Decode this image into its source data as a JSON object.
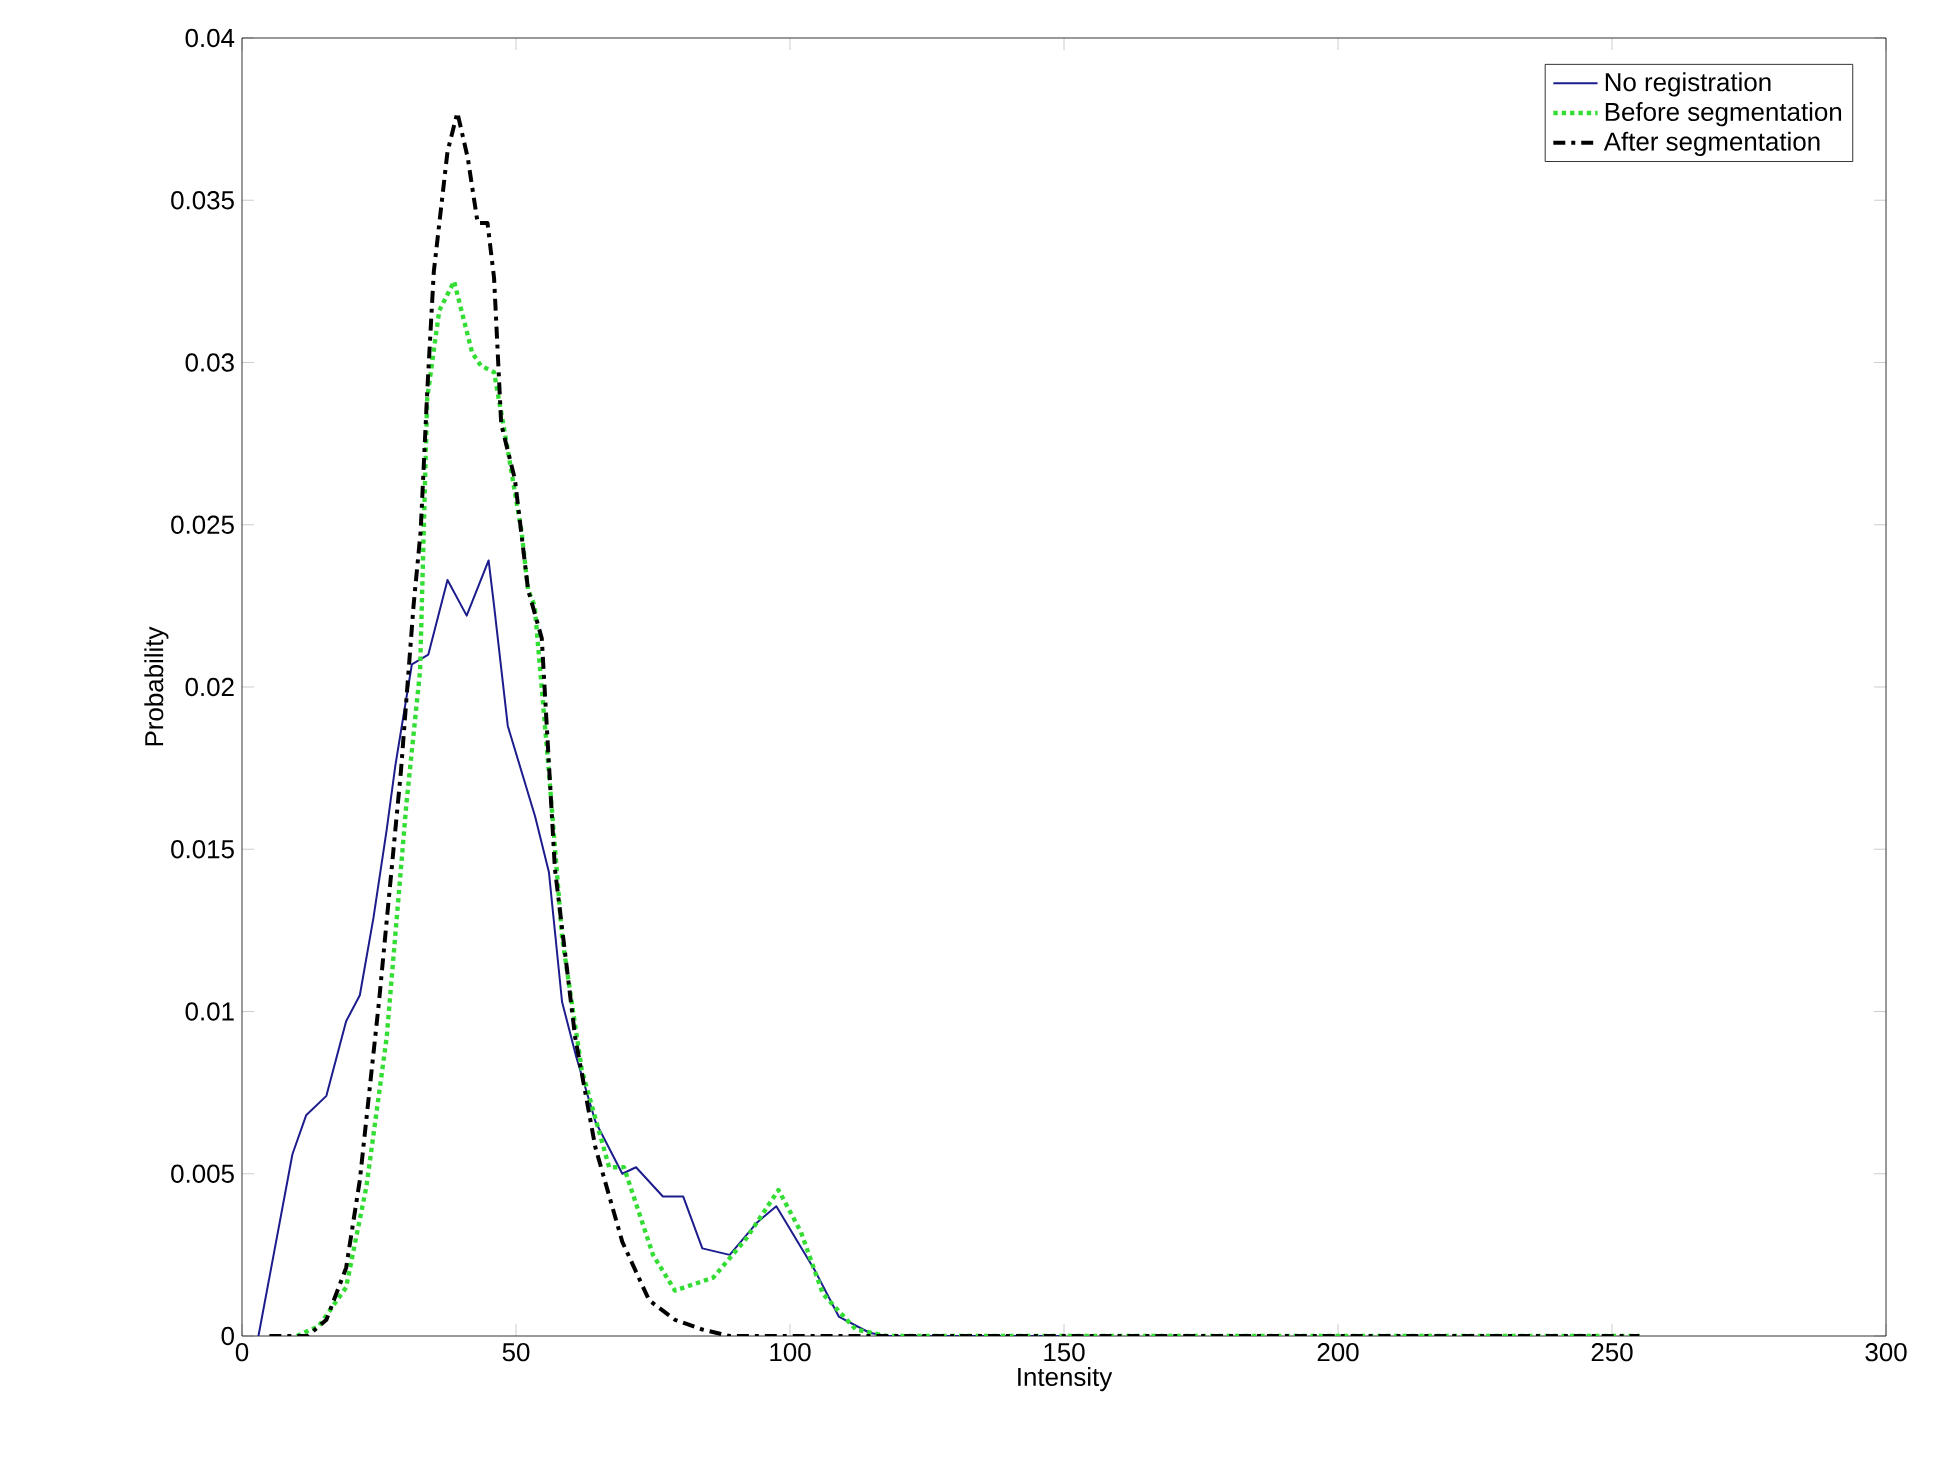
{
  "chart_data": {
    "type": "line",
    "xlabel": "Intensity",
    "ylabel": "Probability",
    "xlim": [
      0,
      300
    ],
    "ylim": [
      0,
      0.04
    ],
    "xticks": [
      0,
      50,
      100,
      150,
      200,
      250,
      300
    ],
    "yticks": [
      0,
      0.005,
      0.01,
      0.015,
      0.02,
      0.025,
      0.03,
      0.035,
      0.04
    ],
    "legend": "top right",
    "marker": "none",
    "grid": false,
    "series": [
      {
        "name": "No registration",
        "color": "#1c1c8c",
        "line_style": "solid",
        "x": [
          3,
          9.2,
          11.7,
          15.4,
          19,
          21.5,
          24,
          26.4,
          28,
          31,
          34,
          37.5,
          41,
          45,
          46,
          48.5,
          53.5,
          56,
          58.4,
          61,
          64.5,
          69.4,
          71.9,
          76.8,
          80.5,
          84,
          89,
          94,
          97.5,
          104.6,
          108.9,
          114.5,
          117.6,
          150
        ],
        "values": [
          0,
          0.0056,
          0.0068,
          0.0074,
          0.0097,
          0.0105,
          0.0129,
          0.0156,
          0.0176,
          0.0207,
          0.021,
          0.0233,
          0.0222,
          0.0239,
          0.0225,
          0.0188,
          0.016,
          0.0143,
          0.0103,
          0.0086,
          0.0066,
          0.005,
          0.0052,
          0.0043,
          0.0043,
          0.0027,
          0.0025,
          0.0035,
          0.004,
          0.002,
          0.0006,
          0.0001,
          0,
          0
        ]
      },
      {
        "name": "Before segmentation",
        "color": "#33dd33",
        "line_style": "dotted",
        "x": [
          10,
          14,
          19,
          22.7,
          26.4,
          30,
          32.5,
          33.8,
          36,
          38.7,
          42,
          43.6,
          46,
          48.5,
          51,
          52.2,
          53.4,
          56,
          58.4,
          62,
          67,
          69.7,
          75,
          79,
          86,
          92,
          97.9,
          102,
          106,
          112,
          117.6,
          150,
          200,
          255
        ],
        "values": [
          0,
          0.0003,
          0.0015,
          0.0046,
          0.0092,
          0.0164,
          0.0205,
          0.0289,
          0.0316,
          0.0325,
          0.0303,
          0.0299,
          0.0297,
          0.0273,
          0.0248,
          0.023,
          0.0225,
          0.0174,
          0.0123,
          0.0082,
          0.0052,
          0.0052,
          0.0025,
          0.0014,
          0.0018,
          0.003,
          0.0045,
          0.0032,
          0.0013,
          0.0002,
          0,
          0,
          0,
          0
        ]
      },
      {
        "name": "After segmentation",
        "color": "#000000",
        "line_style": "dashdot",
        "x": [
          5,
          12,
          15.4,
          19,
          21.5,
          25,
          29,
          31.3,
          32.6,
          33.8,
          35,
          37.5,
          39.3,
          41.2,
          43,
          44.8,
          46,
          47.3,
          49.8,
          52.2,
          54.7,
          57.1,
          60.8,
          64.5,
          69.4,
          74.3,
          79,
          84,
          89,
          150,
          200,
          255
        ],
        "values": [
          0,
          0,
          0.0005,
          0.0021,
          0.0048,
          0.0103,
          0.0174,
          0.0225,
          0.0248,
          0.0291,
          0.0328,
          0.0365,
          0.0377,
          0.0363,
          0.0343,
          0.0343,
          0.0326,
          0.0281,
          0.0264,
          0.023,
          0.0215,
          0.0144,
          0.0092,
          0.0058,
          0.0029,
          0.0011,
          0.0005,
          0.0002,
          0,
          0,
          0,
          0
        ]
      }
    ]
  }
}
